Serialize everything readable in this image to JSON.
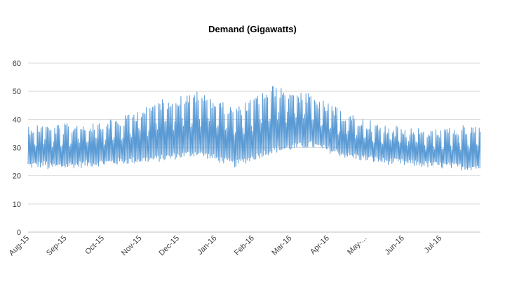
{
  "chart_data": {
    "type": "line",
    "title": "Demand (Gigawatts)",
    "xlabel": "",
    "ylabel": "",
    "ylim": [
      0,
      60
    ],
    "y_ticks": [
      0,
      10,
      20,
      30,
      40,
      50,
      60
    ],
    "x_tick_labels": [
      "Aug-15",
      "Sep-15",
      "Oct-15",
      "Nov-15",
      "Dec-15",
      "Jan-16",
      "Feb-16",
      "Mar-16",
      "Apr-16",
      "May-...",
      "Jun-16",
      "Jul-16"
    ],
    "grid": "horizontal",
    "series_color": "#5b9bd5",
    "series": [
      {
        "x": [
          "2015-08",
          "2015-09",
          "2015-10",
          "2015-11",
          "2015-12",
          "2016-01",
          "2016-02",
          "2016-03",
          "2016-04",
          "2016-05",
          "2016-06",
          "2016-07"
        ],
        "daily_min": [
          22,
          23,
          24,
          25,
          27,
          23,
          28,
          30,
          26,
          24,
          23,
          22
        ],
        "daily_max": [
          38,
          39,
          41,
          47,
          50,
          44,
          52,
          49,
          42,
          38,
          37,
          38
        ]
      }
    ]
  }
}
